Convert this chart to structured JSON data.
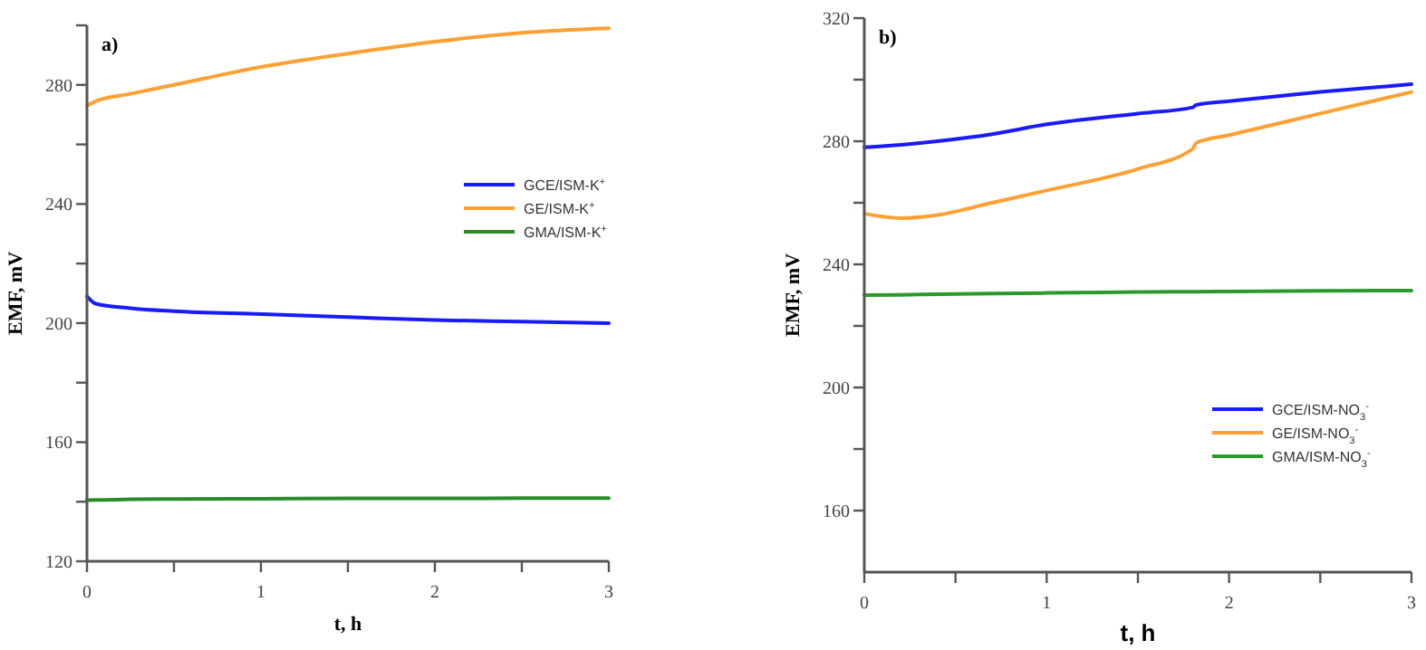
{
  "chart_data": [
    {
      "type": "line",
      "title": "a)",
      "xlabel": "t, h",
      "ylabel": "EMF, mV",
      "x": [
        0,
        0.05,
        0.25,
        0.5,
        1,
        1.5,
        2,
        2.5,
        3
      ],
      "xlim": [
        0,
        3
      ],
      "xticks": [
        0,
        {
          "value": 0.5,
          "label": null
        },
        1,
        {
          "value": 1.5,
          "label": null
        },
        2,
        {
          "value": 2.5,
          "label": null
        },
        3
      ],
      "ylim": [
        120,
        300
      ],
      "yticks": [
        120,
        {
          "value": 140,
          "label": null
        },
        160,
        {
          "value": 180,
          "label": null
        },
        200,
        {
          "value": 220,
          "label": null
        },
        240,
        {
          "value": 260,
          "label": null
        },
        280,
        {
          "value": 300,
          "label": null
        }
      ],
      "legend": "right",
      "grid": false,
      "series": [
        {
          "name": "GCE/ISM-K$^{+}$",
          "color": "#1a1aff",
          "values": [
            209,
            206.5,
            205,
            204,
            203,
            202,
            201,
            200.5,
            200
          ]
        },
        {
          "name": "GE/ISM-K$^{+}$",
          "color": "#ffa033",
          "values": [
            273,
            274.5,
            277,
            280,
            286,
            290.5,
            294.5,
            297.5,
            299
          ]
        },
        {
          "name": "GMA/ISM-K$^{+}$",
          "color": "#2a8a2a",
          "values": [
            140.5,
            140.6,
            140.8,
            140.9,
            141,
            141.1,
            141.1,
            141.2,
            141.2
          ]
        }
      ]
    },
    {
      "type": "line",
      "title": "b)",
      "xlabel": "t, h",
      "ylabel": "EMF, mV",
      "x": [
        0,
        0.2,
        0.4,
        0.7,
        1,
        1.5,
        1.8,
        1.82,
        2,
        2.5,
        3
      ],
      "xlim": [
        0,
        3
      ],
      "xticks": [
        0,
        {
          "value": 0.5,
          "label": null
        },
        1,
        {
          "value": 1.5,
          "label": null
        },
        2,
        {
          "value": 2.5,
          "label": null
        },
        3
      ],
      "ylim": [
        140,
        320
      ],
      "yticks": [
        160,
        {
          "value": 180,
          "label": null
        },
        200,
        {
          "value": 220,
          "label": null
        },
        240,
        {
          "value": 260,
          "label": null
        },
        280,
        {
          "value": 300,
          "label": null
        },
        320
      ],
      "legend": "bottom right",
      "grid": false,
      "series": [
        {
          "name": "GCE/ISM-NO$_{3}$$^{-}$",
          "color": "#1a1aff",
          "values": [
            278,
            278.8,
            280,
            282.3,
            285.5,
            289,
            291,
            291.8,
            293,
            296,
            298.5
          ]
        },
        {
          "name": "GE/ISM-NO$_{3}$$^{-}$",
          "color": "#ffa033",
          "values": [
            256.5,
            255,
            256,
            260,
            264,
            271,
            277.5,
            279.5,
            282,
            289,
            296
          ]
        },
        {
          "name": "GMA/ISM-NO$_{3}$$^{-}$",
          "color": "#2a9a2a",
          "values": [
            230,
            230.1,
            230.3,
            230.5,
            230.7,
            231,
            231.1,
            231.1,
            231.2,
            231.4,
            231.5
          ]
        }
      ]
    }
  ]
}
